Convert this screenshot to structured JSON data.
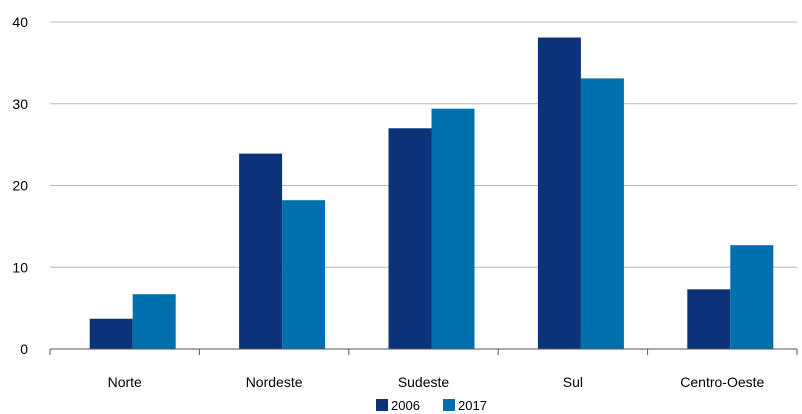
{
  "chart_data": {
    "type": "bar",
    "categories": [
      "Norte",
      "Nordeste",
      "Sudeste",
      "Sul",
      "Centro-Oeste"
    ],
    "series": [
      {
        "name": "2006",
        "values": [
          3.7,
          23.9,
          27.0,
          38.1,
          7.3
        ],
        "color": "#0c3379"
      },
      {
        "name": "2017",
        "values": [
          6.7,
          18.2,
          29.4,
          33.1,
          12.7
        ],
        "color": "#0070ad"
      }
    ],
    "yticks": [
      "0",
      "10",
      "20",
      "30",
      "40"
    ],
    "ylim": [
      0,
      40
    ],
    "grid": true,
    "legend_position": "bottom-center",
    "title": "",
    "xlabel": "",
    "ylabel": ""
  }
}
